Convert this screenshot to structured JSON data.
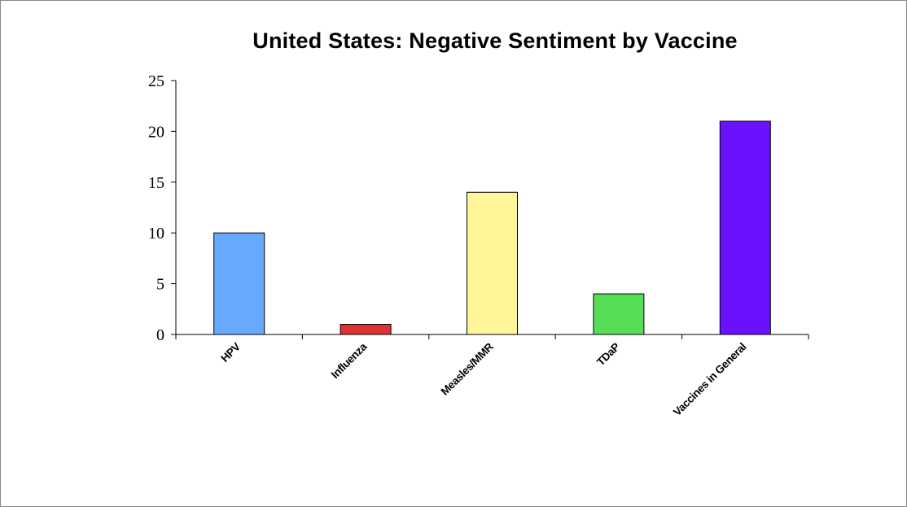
{
  "chart_data": {
    "type": "bar",
    "title": "United States: Negative Sentiment by Vaccine",
    "xlabel": "",
    "ylabel": "",
    "categories": [
      "HPV",
      "Influenza",
      "Measles/MMR",
      "TDaP",
      "Vaccines in General"
    ],
    "values": [
      10,
      1,
      14,
      4,
      21
    ],
    "colors": [
      "#66aaff",
      "#dd3333",
      "#fff599",
      "#55dd55",
      "#6a11ff"
    ],
    "ylim": [
      0,
      25
    ],
    "yticks": [
      0,
      5,
      10,
      15,
      20,
      25
    ],
    "grid": false,
    "legend": "none"
  }
}
